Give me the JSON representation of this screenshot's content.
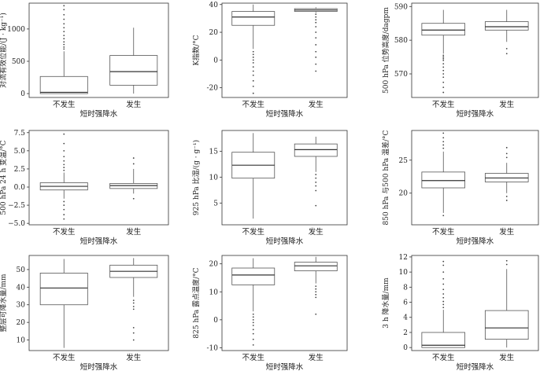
{
  "chart_data": [
    {
      "type": "box",
      "ylabel": "对流有效位能/(J · kg⁻¹)",
      "xlabel": "",
      "categories": [
        "不发生",
        "发生"
      ],
      "ylim": [
        -60,
        1400
      ],
      "yticks": [
        0,
        500,
        1000
      ],
      "boxes": [
        {
          "whisker_low": 0,
          "q1": 0,
          "median": 20,
          "q3": 265,
          "whisker_high": 655,
          "outliers": [
            690,
            720,
            760,
            800,
            850,
            900,
            960,
            1020,
            1080,
            1150,
            1220,
            1300,
            1360
          ]
        },
        {
          "whisker_low": 0,
          "q1": 130,
          "median": 340,
          "q3": 590,
          "whisker_high": 1020,
          "outliers": []
        }
      ]
    },
    {
      "type": "box",
      "ylabel": "K指数/°C",
      "xlabel": "",
      "categories": [
        "不发生",
        "发生"
      ],
      "ylim": [
        -27,
        41
      ],
      "yticks": [
        -20,
        0,
        20,
        40
      ],
      "boxes": [
        {
          "whisker_low": 8,
          "q1": 25,
          "median": 31,
          "q3": 35,
          "whisker_high": 40,
          "outliers": [
            6,
            4,
            2,
            0,
            -2,
            -5,
            -8,
            -11,
            -15,
            -19,
            -24
          ]
        },
        {
          "whisker_low": 34,
          "q1": 35,
          "median": 36,
          "q3": 37,
          "whisker_high": 38,
          "outliers": [
            33,
            31,
            29,
            27,
            24,
            20,
            16,
            11,
            6,
            2,
            -3,
            -8
          ]
        }
      ]
    },
    {
      "type": "box",
      "ylabel": "500 hPa 位势高度/dagpm",
      "xlabel": "",
      "categories": [
        "不发生",
        "发生"
      ],
      "ylim": [
        563,
        591
      ],
      "yticks": [
        570,
        580,
        590
      ],
      "boxes": [
        {
          "whisker_low": 576,
          "q1": 581.5,
          "median": 583,
          "q3": 585,
          "whisker_high": 589,
          "outliers": [
            575.5,
            575,
            574.5,
            574,
            573,
            572,
            571,
            570,
            569,
            567.5,
            566,
            564.5
          ]
        },
        {
          "whisker_low": 579.5,
          "q1": 583,
          "median": 584,
          "q3": 585.5,
          "whisker_high": 589,
          "outliers": [
            577.5,
            576
          ]
        }
      ]
    },
    {
      "type": "box",
      "ylabel": "500 hPa 24 h 变温/°C",
      "xlabel": "",
      "categories": [
        "不发生",
        "发生"
      ],
      "ylim": [
        -5.2,
        7.8
      ],
      "yticks": [
        -5.0,
        -2.5,
        0.0,
        2.5,
        5.0,
        7.5
      ],
      "ytick_labels": [
        "−5.0",
        "−2.5",
        "0.0",
        "2.5",
        "5.0",
        "7.5"
      ],
      "boxes": [
        {
          "whisker_low": -1.6,
          "q1": -0.4,
          "median": 0.1,
          "q3": 0.6,
          "whisker_high": 2.0,
          "outliers": [
            2.3,
            2.7,
            3.1,
            3.6,
            4.2,
            5.0,
            6.0,
            7.3,
            -2.0,
            -2.5,
            -3.1,
            -3.8,
            -4.4
          ]
        },
        {
          "whisker_low": -0.9,
          "q1": -0.2,
          "median": 0.2,
          "q3": 0.5,
          "whisker_high": 2.5,
          "outliers": [
            3.2,
            4.0,
            -1.6
          ]
        }
      ]
    },
    {
      "type": "box",
      "ylabel": "925 hPa 比湿/(g · g⁻¹)",
      "xlabel": "",
      "categories": [
        "不发生",
        "发生"
      ],
      "ylim": [
        0.8,
        19.0
      ],
      "yticks": [
        5,
        10,
        15
      ],
      "boxes": [
        {
          "whisker_low": 2,
          "q1": 9.8,
          "median": 12.3,
          "q3": 14.8,
          "whisker_high": 18.5,
          "outliers": []
        },
        {
          "whisker_low": 11,
          "q1": 14,
          "median": 15.3,
          "q3": 16.4,
          "whisker_high": 17.8,
          "outliers": [
            10.5,
            9.8,
            9.0,
            8.3,
            7.4,
            4.5
          ]
        }
      ]
    },
    {
      "type": "box",
      "ylabel": "850 hPa 与500 hPa 温差/°C",
      "xlabel": "",
      "categories": [
        "不发生",
        "发生"
      ],
      "ylim": [
        15.2,
        29.5
      ],
      "yticks": [
        20,
        25
      ],
      "boxes": [
        {
          "whisker_low": 17,
          "q1": 20.8,
          "median": 21.9,
          "q3": 23.2,
          "whisker_high": 26.3,
          "outliers": [
            26.8,
            27.3,
            27.8,
            28.4,
            29.1,
            16.6
          ]
        },
        {
          "whisker_low": 20,
          "q1": 21.7,
          "median": 22.3,
          "q3": 23.0,
          "whisker_high": 24.6,
          "outliers": [
            25.4,
            26.0,
            26.9,
            19.5,
            18.9
          ]
        }
      ]
    },
    {
      "type": "box",
      "ylabel": "整层可降水量/mm",
      "xlabel": "短时强降水",
      "categories": [
        "不发生",
        "发生"
      ],
      "ylim": [
        4,
        58
      ],
      "yticks": [
        10,
        20,
        30,
        40,
        50
      ],
      "boxes": [
        {
          "whisker_low": 5.5,
          "q1": 30,
          "median": 39.5,
          "q3": 48,
          "whisker_high": 56,
          "outliers": []
        },
        {
          "whisker_low": 34.5,
          "q1": 45.5,
          "median": 49,
          "q3": 52.5,
          "whisker_high": 56.5,
          "outliers": [
            32.5,
            31,
            29,
            27.5,
            17,
            14,
            10
          ]
        }
      ]
    },
    {
      "type": "box",
      "ylabel": "825 hPa 露点温度/°C",
      "xlabel": "短时强降水",
      "categories": [
        "不发生",
        "发生"
      ],
      "ylim": [
        -11,
        23
      ],
      "yticks": [
        -10,
        0,
        10,
        20
      ],
      "boxes": [
        {
          "whisker_low": 3,
          "q1": 12.5,
          "median": 16,
          "q3": 18.5,
          "whisker_high": 22,
          "outliers": [
            2,
            1,
            0,
            -1,
            -2,
            -3.5,
            -5,
            -7,
            -9
          ]
        },
        {
          "whisker_low": 13,
          "q1": 17.5,
          "median": 19.3,
          "q3": 20.6,
          "whisker_high": 22.5,
          "outliers": [
            12,
            11,
            10,
            9,
            8,
            2
          ]
        }
      ]
    },
    {
      "type": "box",
      "ylabel": "3 h 降水量/mm",
      "xlabel": "短时强降水",
      "categories": [
        "不发生",
        "发生"
      ],
      "ylim": [
        -0.4,
        12.2
      ],
      "yticks": [
        0,
        2,
        4,
        6,
        8,
        10,
        12
      ],
      "boxes": [
        {
          "whisker_low": 0,
          "q1": 0,
          "median": 0.3,
          "q3": 2,
          "whisker_high": 5,
          "outliers": [
            5.3,
            5.7,
            6.1,
            6.6,
            7.1,
            7.7,
            8.4,
            9.1,
            10.0,
            10.9,
            11.4
          ]
        },
        {
          "whisker_low": 0,
          "q1": 1.1,
          "median": 2.6,
          "q3": 4.9,
          "whisker_high": 10.4,
          "outliers": [
            11.0,
            11.5
          ]
        }
      ]
    }
  ],
  "xlabel_top_rows": "短时强降水"
}
